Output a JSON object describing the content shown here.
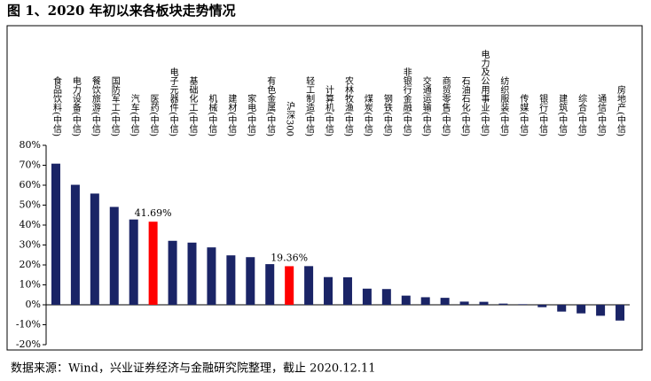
{
  "chart_data": {
    "type": "bar",
    "title": "图 1、2020 年初以来各板块走势情况",
    "source": "数据来源：Wind，兴业证券经济与金融研究院整理，截止 2020.12.11",
    "categories": [
      "食品饮料(中信)",
      "电力设备(中信)",
      "餐饮旅游(中信)",
      "国防军工(中信)",
      "汽车(中信)",
      "医药(中信)",
      "电子元器件(中信)",
      "基础化工(中信)",
      "机械(中信)",
      "建材(中信)",
      "家电(中信)",
      "有色金属(中信)",
      "沪深300",
      "轻工制造(中信)",
      "计算机(中信)",
      "农林牧渔(中信)",
      "煤炭(中信)",
      "钢铁(中信)",
      "非银行金融(中信)",
      "交通运输(中信)",
      "商贸零售(中信)",
      "石油石化(中信)",
      "电力及公用事业(中信)",
      "纺织服装(中信)",
      "传媒(中信)",
      "银行(中信)",
      "建筑(中信)",
      "综合(中信)",
      "通信(中信)",
      "房地产(中信)"
    ],
    "values": [
      70.8,
      60.2,
      55.8,
      49.1,
      42.8,
      41.69,
      32.1,
      31.2,
      28.8,
      24.8,
      23.9,
      20.4,
      19.36,
      19.4,
      13.9,
      13.8,
      8.1,
      7.9,
      4.6,
      3.8,
      3.5,
      1.6,
      1.5,
      0.6,
      0.3,
      -1.2,
      -3.4,
      -4.3,
      -5.5,
      -7.9
    ],
    "value_labels": [
      null,
      null,
      null,
      null,
      null,
      "41.69%",
      null,
      null,
      null,
      null,
      null,
      null,
      "19.36%",
      null,
      null,
      null,
      null,
      null,
      null,
      null,
      null,
      null,
      null,
      null,
      null,
      null,
      null,
      null,
      null,
      null
    ],
    "colors": [
      "#1a2466",
      "#1a2466",
      "#1a2466",
      "#1a2466",
      "#1a2466",
      "#ff0000",
      "#1a2466",
      "#1a2466",
      "#1a2466",
      "#1a2466",
      "#1a2466",
      "#1a2466",
      "#ff0000",
      "#1a2466",
      "#1a2466",
      "#1a2466",
      "#1a2466",
      "#1a2466",
      "#1a2466",
      "#1a2466",
      "#1a2466",
      "#1a2466",
      "#1a2466",
      "#1a2466",
      "#1a2466",
      "#1a2466",
      "#1a2466",
      "#1a2466",
      "#1a2466",
      "#1a2466"
    ],
    "ylim": [
      -20,
      80
    ],
    "yticks": [
      {
        "value": -20,
        "label": "-20%"
      },
      {
        "value": -10,
        "label": "-10%"
      },
      {
        "value": 0,
        "label": "0%"
      },
      {
        "value": 10,
        "label": "10%"
      },
      {
        "value": 20,
        "label": "20%"
      },
      {
        "value": 30,
        "label": "30%"
      },
      {
        "value": 40,
        "label": "40%"
      },
      {
        "value": 50,
        "label": "50%"
      },
      {
        "value": 60,
        "label": "60%"
      },
      {
        "value": 70,
        "label": "70%"
      },
      {
        "value": 80,
        "label": "80%"
      }
    ]
  }
}
